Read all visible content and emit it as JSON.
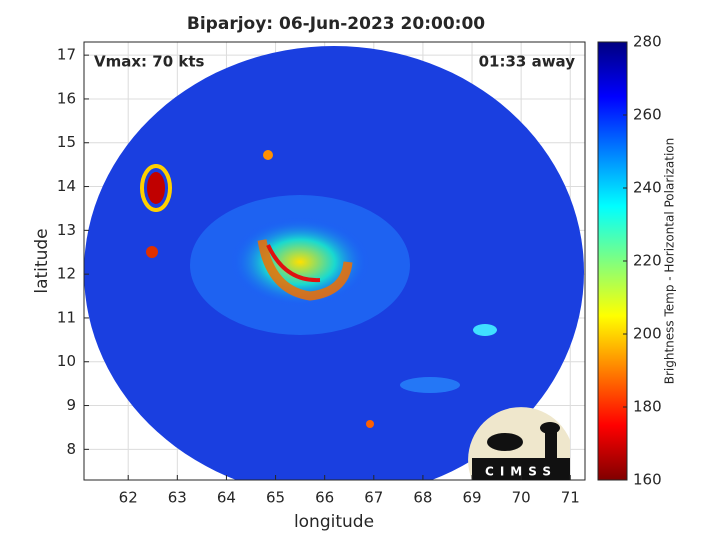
{
  "chart_data": {
    "type": "image",
    "title": "Biparjoy: 06-Jun-2023 20:00:00",
    "xlabel": "longitude",
    "ylabel": "latitude",
    "xlim": [
      61.1,
      71.3
    ],
    "ylim": [
      7.3,
      17.3
    ],
    "xticks": [
      62,
      63,
      64,
      65,
      66,
      67,
      68,
      69,
      70,
      71
    ],
    "yticks": [
      8,
      9,
      10,
      11,
      12,
      13,
      14,
      15,
      16,
      17
    ],
    "grid": true,
    "annotations": [
      "Vmax: 70 kts",
      "01:33 away"
    ],
    "colorbar": {
      "label": "Brightness Temp - Horizontal Polarization",
      "colormap": "jet",
      "lim": [
        160,
        280
      ],
      "ticks": [
        160,
        180,
        200,
        220,
        240,
        260,
        280
      ]
    },
    "logo_text": "CIMSS"
  }
}
